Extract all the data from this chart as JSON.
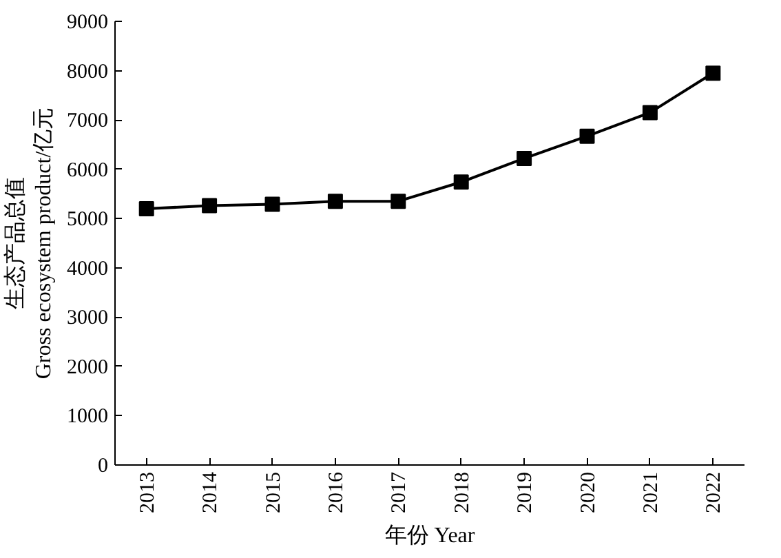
{
  "chart_data": {
    "type": "line",
    "xlabel": "年份 Year",
    "ylabel": "生态产品总值\nGross ecosystem product/亿元",
    "categories": [
      "2013",
      "2014",
      "2015",
      "2016",
      "2017",
      "2018",
      "2019",
      "2020",
      "2021",
      "2022"
    ],
    "series": [
      {
        "color": "#000000",
        "values": [
          5200,
          5260,
          5290,
          5350,
          5350,
          5740,
          6220,
          6670,
          7150,
          7950
        ]
      }
    ],
    "ylim": [
      0,
      9000
    ],
    "yticks": [
      0,
      1000,
      2000,
      3000,
      4000,
      5000,
      6000,
      7000,
      8000,
      9000
    ],
    "grid": false,
    "marker": "square",
    "line_style": "solid"
  }
}
